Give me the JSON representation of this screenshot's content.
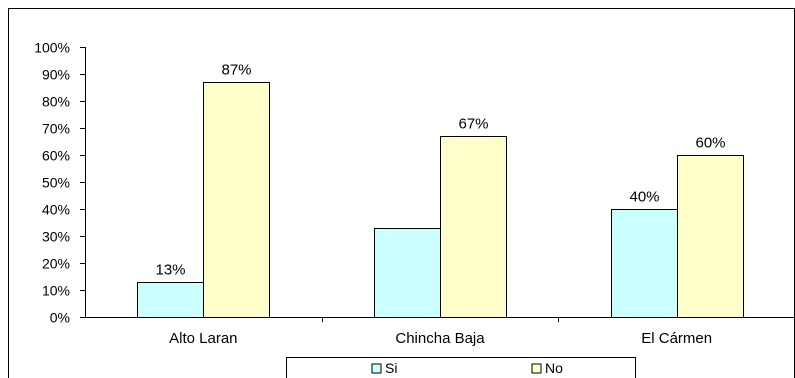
{
  "chart_data": {
    "type": "bar",
    "categories": [
      "Alto Laran",
      "Chincha Baja",
      "El Cármen"
    ],
    "series": [
      {
        "name": "Si",
        "values": [
          13,
          33,
          40
        ],
        "labels": [
          "13%",
          "",
          "40%"
        ]
      },
      {
        "name": "No",
        "values": [
          87,
          67,
          60
        ],
        "labels": [
          "87%",
          "67%",
          "60%"
        ]
      }
    ],
    "ylim": [
      0,
      100
    ],
    "yticks": [
      0,
      10,
      20,
      30,
      40,
      50,
      60,
      70,
      80,
      90,
      100
    ],
    "ytick_labels": [
      "0%",
      "10%",
      "20%",
      "30%",
      "40%",
      "50%",
      "60%",
      "70%",
      "80%",
      "90%",
      "100%"
    ],
    "grid": false,
    "legend_position": "bottom",
    "colors": {
      "Si": "#ccffff",
      "No": "#ffffcc",
      "edge": "#000000"
    }
  }
}
